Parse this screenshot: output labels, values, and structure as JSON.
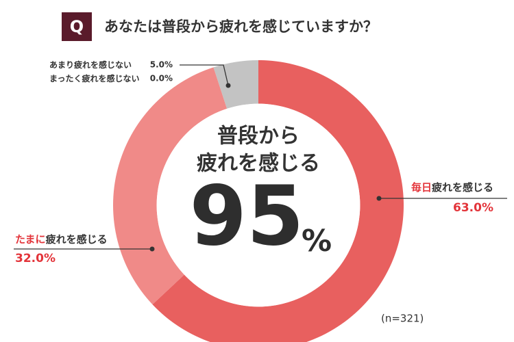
{
  "chart_data": {
    "type": "donut",
    "title": "あなたは普段から疲れを感じていますか？",
    "badge": "Q",
    "categories": [
      [
        "毎日",
        "疲れを感じる"
      ],
      [
        "たまに",
        "疲れを感じる"
      ],
      [
        "あまり疲れを感じない"
      ],
      [
        "まったく疲れを感じない"
      ]
    ],
    "values": [
      63,
      32,
      5,
      0
    ],
    "value_labels": [
      "63.0%",
      "32.0%",
      "5.0%",
      "0.0%"
    ],
    "colors": [
      "#e8605f",
      "#f08a88",
      "#c3c3c3",
      "#9e9e9e"
    ],
    "highlight_color": "#e3343a",
    "center_label": [
      "普段から",
      "疲れを感じる"
    ],
    "center_value": 95,
    "center_unit": "%",
    "note": "(n=321)"
  }
}
